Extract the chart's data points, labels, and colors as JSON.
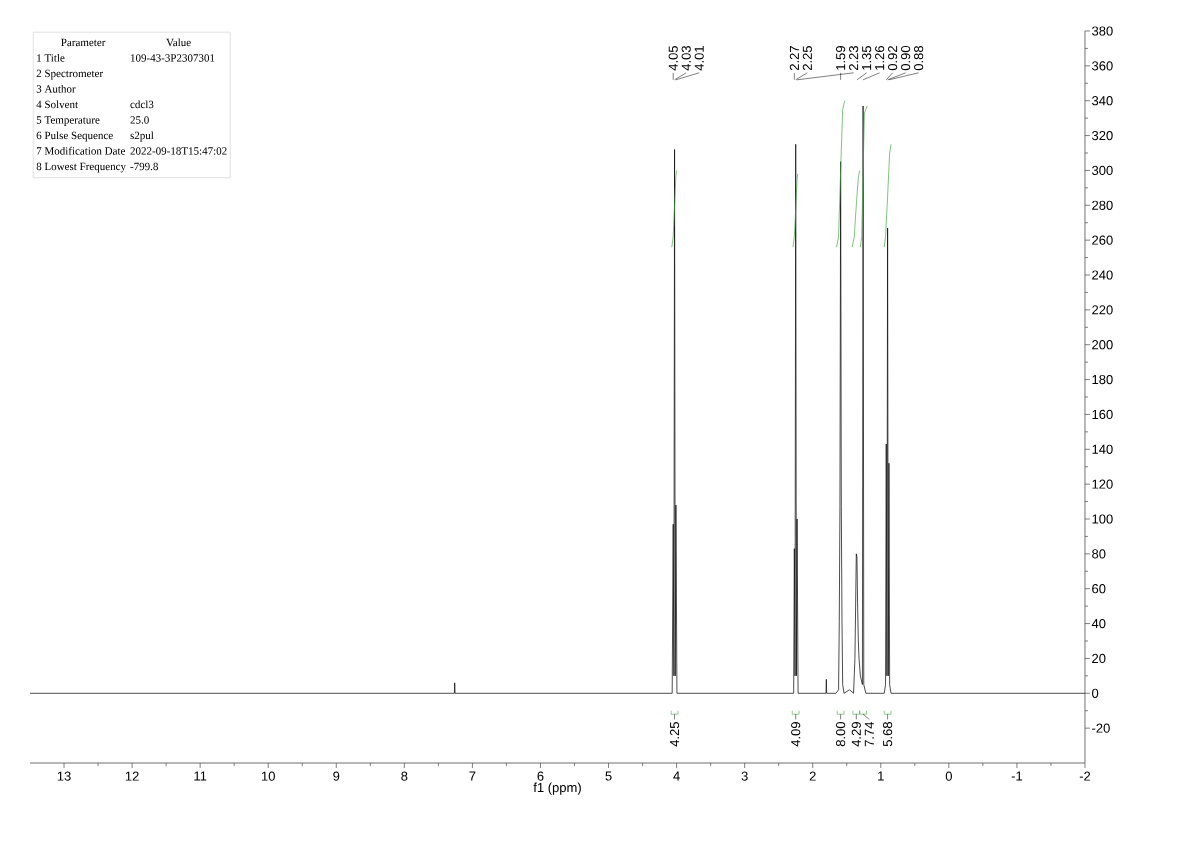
{
  "chart_data": {
    "type": "line",
    "xlabel": "f1 (ppm)",
    "xlim": [
      13.5,
      -2
    ],
    "ylim": [
      -40,
      380
    ],
    "xticks": [
      13,
      12,
      11,
      10,
      9,
      8,
      7,
      6,
      5,
      4,
      3,
      2,
      1,
      0,
      -1,
      -2
    ],
    "yticks": [
      -20,
      0,
      20,
      40,
      60,
      80,
      100,
      120,
      140,
      160,
      180,
      200,
      220,
      240,
      260,
      280,
      300,
      320,
      340,
      360,
      380
    ],
    "series": [
      {
        "color": "#000000",
        "x": [
          13.5,
          7.3,
          7.265,
          7.26,
          7.255,
          7.22,
          4.1,
          4.065,
          4.05,
          4.04,
          4.03,
          4.02,
          4.01,
          3.995,
          3.9,
          2.3,
          2.28,
          2.27,
          2.26,
          2.25,
          2.24,
          2.23,
          2.215,
          1.86,
          1.805,
          1.8,
          1.795,
          1.66,
          1.62,
          1.61,
          1.6,
          1.59,
          1.58,
          1.57,
          1.56,
          1.54,
          1.46,
          1.4,
          1.38,
          1.37,
          1.36,
          1.35,
          1.34,
          1.33,
          1.32,
          1.3,
          1.27,
          1.26,
          1.25,
          1.22,
          0.95,
          0.93,
          0.92,
          0.91,
          0.9,
          0.89,
          0.88,
          0.87,
          0.85,
          -2
        ],
        "values": [
          0,
          0,
          0,
          6,
          0,
          0,
          0,
          0,
          97,
          10,
          312,
          10,
          108,
          0,
          0,
          0,
          0,
          83,
          10,
          315,
          10,
          100,
          0,
          0,
          0,
          8,
          0,
          0,
          2,
          41,
          107,
          305,
          107,
          41,
          5,
          0,
          2,
          0,
          20,
          49,
          80,
          78,
          49,
          30,
          20,
          10,
          5,
          337,
          5,
          0,
          0,
          5,
          143,
          10,
          267,
          10,
          132,
          5,
          0,
          0
        ]
      },
      {
        "color": "#4aa84a",
        "x": [
          4.07,
          4.05,
          4.03,
          4.01,
          4.0
        ],
        "values": [
          256,
          262,
          280,
          297,
          300
        ]
      },
      {
        "color": "#4aa84a",
        "x": [
          2.29,
          2.27,
          2.25,
          2.23,
          2.22
        ],
        "values": [
          256,
          262,
          278,
          295,
          298
        ]
      },
      {
        "color": "#4aa84a",
        "x": [
          1.65,
          1.62,
          1.59,
          1.56,
          1.53
        ],
        "values": [
          256,
          262,
          300,
          335,
          340
        ]
      },
      {
        "color": "#4aa84a",
        "x": [
          1.42,
          1.39,
          1.36,
          1.33,
          1.31
        ],
        "values": [
          256,
          262,
          280,
          296,
          300
        ]
      },
      {
        "color": "#4aa84a",
        "x": [
          1.3,
          1.28,
          1.26,
          1.24,
          1.2
        ],
        "values": [
          256,
          262,
          300,
          333,
          337
        ]
      },
      {
        "color": "#4aa84a",
        "x": [
          0.95,
          0.93,
          0.9,
          0.87,
          0.85
        ],
        "values": [
          256,
          262,
          285,
          310,
          315
        ]
      }
    ],
    "annotations": [
      "Parameter",
      "Value",
      "1 Title",
      "109-43-3P2307301",
      "2 Spectrometer",
      "3 Author",
      "4 Solvent",
      "cdcl3",
      "5 Temperature",
      "25.0",
      "6 Pulse Sequence",
      "s2pul",
      "7 Modification Date",
      "2022-09-18T15:47:02",
      "8 Lowest Frequency",
      "-799.8",
      {
        "text": "4.05",
        "x": 4.05
      },
      {
        "text": "4.03",
        "x": 4.03
      },
      {
        "text": "4.01",
        "x": 4.01
      },
      {
        "text": "2.27",
        "x": 2.27
      },
      {
        "text": "2.25",
        "x": 2.25
      },
      {
        "text": "1.59",
        "x": 1.59
      },
      {
        "text": "2.23",
        "x": 2.23
      },
      {
        "text": "1.35",
        "x": 1.35
      },
      {
        "text": "1.26",
        "x": 1.26
      },
      {
        "text": "0.92",
        "x": 0.92
      },
      {
        "text": "0.90",
        "x": 0.9
      },
      {
        "text": "0.88",
        "x": 0.88
      },
      {
        "text": "4.25",
        "x": 4.03,
        "y": -12
      },
      {
        "text": "4.09",
        "x": 2.25,
        "y": -12
      },
      {
        "text": "8.00",
        "x": 1.59,
        "y": -12
      },
      {
        "text": "4.29",
        "x": 1.36,
        "y": -12
      },
      {
        "text": "7.74",
        "x": 1.26,
        "y": -12
      },
      {
        "text": "5.68",
        "x": 0.9,
        "y": -12
      }
    ]
  }
}
